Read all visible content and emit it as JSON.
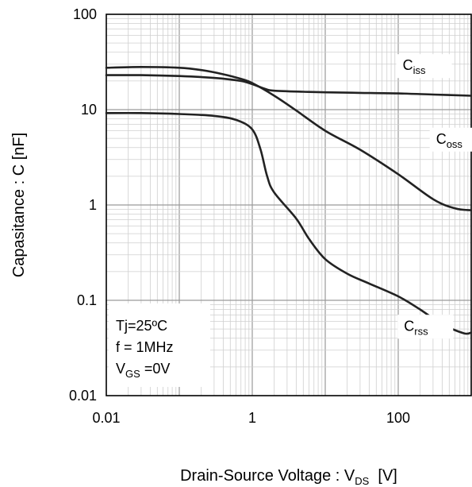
{
  "chart_data": {
    "type": "line",
    "xscale": "log",
    "yscale": "log",
    "xlim": [
      0.01,
      1000
    ],
    "ylim": [
      0.01,
      100
    ],
    "grid": true,
    "x_ticks": [
      {
        "value": 0.01,
        "label": "0.01"
      },
      {
        "value": 1,
        "label": "1"
      },
      {
        "value": 100,
        "label": "100"
      }
    ],
    "y_ticks": [
      {
        "value": 100,
        "label": "100"
      },
      {
        "value": 10,
        "label": "10"
      },
      {
        "value": 1,
        "label": "1"
      },
      {
        "value": 0.1,
        "label": "0.1"
      },
      {
        "value": 0.01,
        "label": "0.01"
      }
    ],
    "xlabel": {
      "main": "Drain-Source Voltage : V",
      "sub": "DS",
      "unit": "  [V]"
    },
    "ylabel": "Capasitance : C  [nF]",
    "annotations": {
      "line1": "Tj=25ºC",
      "line2": "f = 1MHz",
      "line3_main": "V",
      "line3_sub": "GS",
      "line3_rest": " =0V"
    },
    "series": [
      {
        "name_main": "C",
        "name_sub": "iss",
        "label_at": {
          "x": 115,
          "y": 26
        },
        "points": [
          [
            0.01,
            23
          ],
          [
            0.03,
            23
          ],
          [
            0.1,
            22.5
          ],
          [
            0.3,
            21.5
          ],
          [
            0.7,
            20
          ],
          [
            1,
            18.5
          ],
          [
            1.5,
            16.5
          ],
          [
            2,
            15.8
          ],
          [
            5,
            15.4
          ],
          [
            10,
            15.2
          ],
          [
            30,
            15
          ],
          [
            100,
            14.8
          ],
          [
            300,
            14.4
          ],
          [
            1000,
            14
          ]
        ]
      },
      {
        "name_main": "C",
        "name_sub": "oss",
        "label_at": {
          "x": 330,
          "y": 4.4
        },
        "points": [
          [
            0.01,
            27.5
          ],
          [
            0.03,
            28
          ],
          [
            0.1,
            27.5
          ],
          [
            0.2,
            26
          ],
          [
            0.4,
            23.5
          ],
          [
            0.7,
            21
          ],
          [
            1,
            19
          ],
          [
            2,
            14
          ],
          [
            4,
            9.8
          ],
          [
            10,
            6
          ],
          [
            30,
            3.8
          ],
          [
            100,
            2.1
          ],
          [
            300,
            1.15
          ],
          [
            600,
            0.92
          ],
          [
            1000,
            0.88
          ]
        ]
      },
      {
        "name_main": "C",
        "name_sub": "rss",
        "label_at": {
          "x": 120,
          "y": 0.048
        },
        "points": [
          [
            0.01,
            9.2
          ],
          [
            0.03,
            9.2
          ],
          [
            0.1,
            9
          ],
          [
            0.3,
            8.6
          ],
          [
            0.6,
            7.8
          ],
          [
            1,
            6.2
          ],
          [
            1.3,
            3.8
          ],
          [
            1.6,
            2
          ],
          [
            2,
            1.35
          ],
          [
            4,
            0.72
          ],
          [
            6,
            0.44
          ],
          [
            10,
            0.27
          ],
          [
            20,
            0.19
          ],
          [
            40,
            0.15
          ],
          [
            100,
            0.11
          ],
          [
            200,
            0.08
          ],
          [
            400,
            0.056
          ],
          [
            800,
            0.045
          ],
          [
            1000,
            0.046
          ]
        ]
      }
    ]
  }
}
